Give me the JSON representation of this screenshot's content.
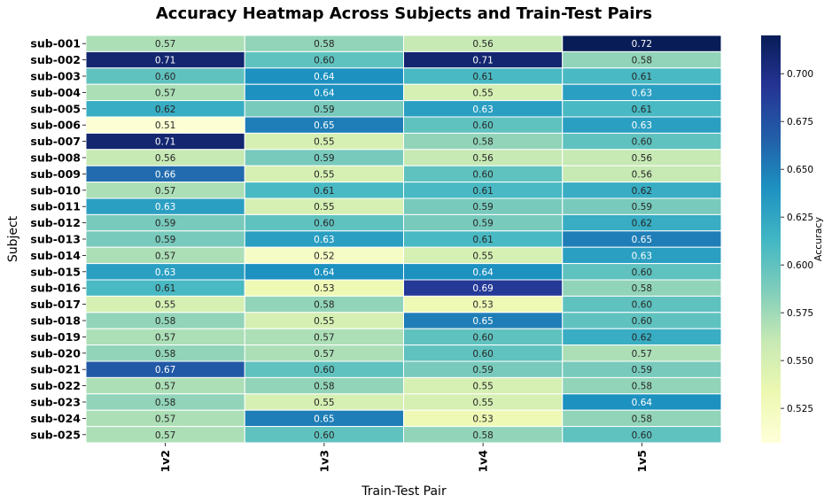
{
  "chart_data": {
    "type": "heatmap",
    "title": "Accuracy Heatmap Across Subjects and Train-Test Pairs",
    "xlabel": "Train-Test Pair",
    "ylabel": "Subject",
    "x_categories": [
      "1v2",
      "1v3",
      "1v4",
      "1v5"
    ],
    "y_categories": [
      "sub-001",
      "sub-002",
      "sub-003",
      "sub-004",
      "sub-005",
      "sub-006",
      "sub-007",
      "sub-008",
      "sub-009",
      "sub-010",
      "sub-011",
      "sub-012",
      "sub-013",
      "sub-014",
      "sub-015",
      "sub-016",
      "sub-017",
      "sub-018",
      "sub-019",
      "sub-020",
      "sub-021",
      "sub-022",
      "sub-023",
      "sub-024",
      "sub-025"
    ],
    "values": [
      [
        0.57,
        0.58,
        0.56,
        0.72
      ],
      [
        0.71,
        0.6,
        0.71,
        0.58
      ],
      [
        0.6,
        0.64,
        0.61,
        0.61
      ],
      [
        0.57,
        0.64,
        0.55,
        0.63
      ],
      [
        0.62,
        0.59,
        0.63,
        0.61
      ],
      [
        0.51,
        0.65,
        0.6,
        0.63
      ],
      [
        0.71,
        0.55,
        0.58,
        0.6
      ],
      [
        0.56,
        0.59,
        0.56,
        0.56
      ],
      [
        0.66,
        0.55,
        0.6,
        0.56
      ],
      [
        0.57,
        0.61,
        0.61,
        0.62
      ],
      [
        0.63,
        0.55,
        0.59,
        0.59
      ],
      [
        0.59,
        0.6,
        0.59,
        0.62
      ],
      [
        0.59,
        0.63,
        0.61,
        0.65
      ],
      [
        0.57,
        0.52,
        0.55,
        0.63
      ],
      [
        0.63,
        0.64,
        0.64,
        0.6
      ],
      [
        0.61,
        0.53,
        0.69,
        0.58
      ],
      [
        0.55,
        0.58,
        0.53,
        0.6
      ],
      [
        0.58,
        0.55,
        0.65,
        0.6
      ],
      [
        0.57,
        0.57,
        0.6,
        0.62
      ],
      [
        0.58,
        0.57,
        0.6,
        0.57
      ],
      [
        0.67,
        0.6,
        0.59,
        0.59
      ],
      [
        0.57,
        0.58,
        0.55,
        0.58
      ],
      [
        0.58,
        0.55,
        0.55,
        0.64
      ],
      [
        0.57,
        0.65,
        0.53,
        0.58
      ],
      [
        0.57,
        0.6,
        0.58,
        0.6
      ]
    ],
    "value_range": [
      0.507,
      0.72
    ],
    "colormap": "YlGnBu",
    "colormap_stops": [
      "#ffffd9",
      "#edf8b1",
      "#c7e9b4",
      "#7fcdbb",
      "#41b6c4",
      "#1d91c0",
      "#225ea8",
      "#253494",
      "#081d58"
    ],
    "colorbar": {
      "label": "Accuracy",
      "ticks": [
        0.525,
        0.55,
        0.575,
        0.6,
        0.625,
        0.65,
        0.675,
        0.7
      ],
      "tick_labels": [
        "0.525",
        "0.550",
        "0.575",
        "0.600",
        "0.625",
        "0.650",
        "0.675",
        "0.700"
      ]
    },
    "grid": true,
    "dark_text_color": "#262626",
    "light_text_color": "#ffffff"
  }
}
